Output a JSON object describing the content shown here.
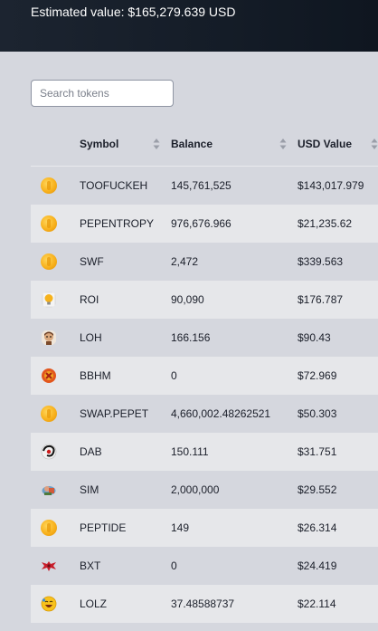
{
  "header": {
    "estimated_value_text": "Estimated value: $165,279.639 USD"
  },
  "search": {
    "placeholder": "Search tokens",
    "value": ""
  },
  "table": {
    "columns": [
      {
        "label": "Symbol",
        "sortable": true
      },
      {
        "label": "Balance",
        "sortable": true
      },
      {
        "label": "USD Value",
        "sortable": true
      }
    ],
    "rows": [
      {
        "symbol": "TOOFUCKEH",
        "balance": "145,761,525",
        "usd_value": "$143,017.979",
        "icon": "gold-coin-icon"
      },
      {
        "symbol": "PEPENTROPY",
        "balance": "976,676.966",
        "usd_value": "$21,235.62",
        "icon": "gold-coin-icon"
      },
      {
        "symbol": "SWF",
        "balance": "2,472",
        "usd_value": "$339.563",
        "icon": "gold-coin-icon"
      },
      {
        "symbol": "ROI",
        "balance": "90,090",
        "usd_value": "$176.787",
        "icon": "lightbulb-coin-icon"
      },
      {
        "symbol": "LOH",
        "balance": "166.156",
        "usd_value": "$90.43",
        "icon": "face-avatar-icon"
      },
      {
        "symbol": "BBHM",
        "balance": "0",
        "usd_value": "$72.969",
        "icon": "red-badge-icon"
      },
      {
        "symbol": "SWAP.PEPET",
        "balance": "4,660,002.48262521",
        "usd_value": "$50.303",
        "icon": "gold-coin-icon"
      },
      {
        "symbol": "DAB",
        "balance": "150.111",
        "usd_value": "$31.751",
        "icon": "dark-swirl-icon"
      },
      {
        "symbol": "SIM",
        "balance": "2,000,000",
        "usd_value": "$29.552",
        "icon": "character-icon"
      },
      {
        "symbol": "PEPTIDE",
        "balance": "149",
        "usd_value": "$26.314",
        "icon": "gold-coin-icon"
      },
      {
        "symbol": "BXT",
        "balance": "0",
        "usd_value": "$24.419",
        "icon": "red-bat-icon"
      },
      {
        "symbol": "LOLZ",
        "balance": "37.48588737",
        "usd_value": "$22.114",
        "icon": "laughing-face-icon"
      }
    ]
  },
  "colors": {
    "topbar": "#141c27",
    "page_background": "#d5d7de",
    "striped_row": "#e6e7ea",
    "coin": "#f8b11c"
  }
}
